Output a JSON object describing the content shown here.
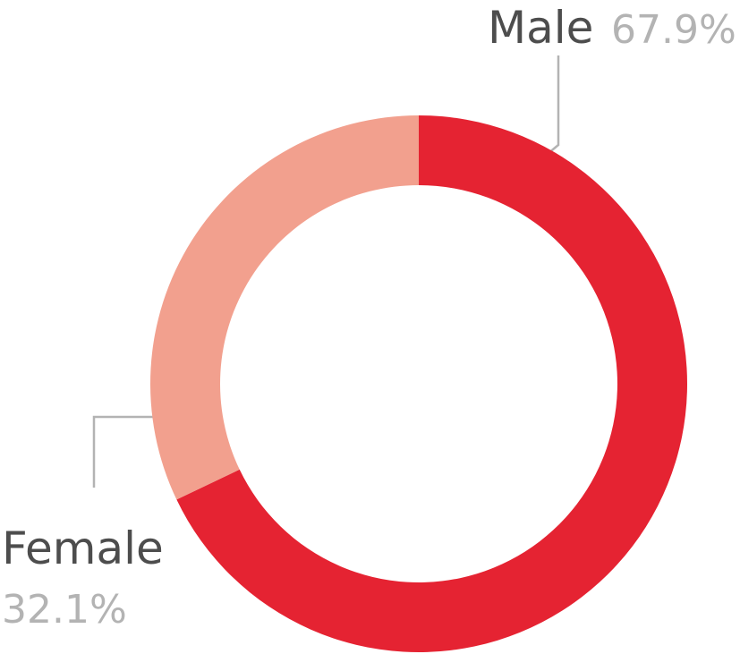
{
  "chart_data": {
    "type": "donut",
    "categories": [
      "Male",
      "Female"
    ],
    "values": [
      67.9,
      32.1
    ],
    "value_labels": [
      "67.9%",
      "32.1%"
    ],
    "colors": [
      "#e52332",
      "#f2a08e"
    ]
  }
}
